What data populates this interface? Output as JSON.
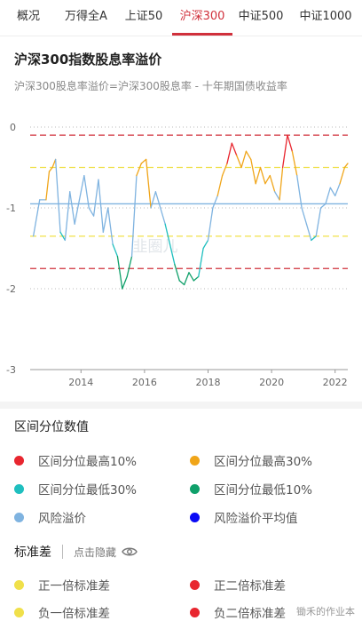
{
  "tabs": [
    {
      "label": "概况"
    },
    {
      "label": "万得全A"
    },
    {
      "label": "上证50"
    },
    {
      "label": "沪深300",
      "active": true
    },
    {
      "label": "中证500"
    },
    {
      "label": "中证1000"
    }
  ],
  "header": {
    "title": "沪深300指数股息率溢价",
    "subtitle": "沪深300股息率溢价=沪深300股息率 - 十年期国债收益率"
  },
  "watermark_chart": "韭圈儿",
  "chart_data": {
    "type": "line",
    "title": "",
    "xlabel": "",
    "ylabel": "",
    "ylim": [
      -3,
      0
    ],
    "xlim": [
      2012.4,
      2022.4
    ],
    "y_ticks": [
      "0",
      "-1",
      "-2",
      "-3"
    ],
    "x_ticks": [
      "2014",
      "2016",
      "2018",
      "2020",
      "2022"
    ],
    "reference_lines": [
      {
        "name": "正二倍标准差",
        "value": -0.1,
        "color": "#d0303b",
        "style": "dashed"
      },
      {
        "name": "正一倍标准差",
        "value": -0.5,
        "color": "#f0e04a",
        "style": "dashed"
      },
      {
        "name": "风险溢价平均值",
        "value": -0.95,
        "color": "#7fb3e0",
        "style": "solid"
      },
      {
        "name": "负一倍标准差",
        "value": -1.35,
        "color": "#f0e04a",
        "style": "dashed"
      },
      {
        "name": "负二倍标准差",
        "value": -1.75,
        "color": "#d0303b",
        "style": "dashed"
      }
    ],
    "series": [
      {
        "name": "风险溢价",
        "x": [
          2012.5,
          2012.7,
          2012.9,
          2013.0,
          2013.1,
          2013.2,
          2013.35,
          2013.5,
          2013.65,
          2013.8,
          2013.95,
          2014.1,
          2014.25,
          2014.4,
          2014.55,
          2014.7,
          2014.85,
          2015.0,
          2015.15,
          2015.3,
          2015.45,
          2015.6,
          2015.75,
          2015.9,
          2016.05,
          2016.2,
          2016.35,
          2016.5,
          2016.65,
          2016.8,
          2016.95,
          2017.1,
          2017.25,
          2017.4,
          2017.55,
          2017.7,
          2017.85,
          2018.0,
          2018.15,
          2018.3,
          2018.45,
          2018.6,
          2018.75,
          2018.9,
          2019.05,
          2019.2,
          2019.35,
          2019.5,
          2019.65,
          2019.8,
          2019.95,
          2020.1,
          2020.25,
          2020.35,
          2020.5,
          2020.65,
          2020.8,
          2020.95,
          2021.1,
          2021.25,
          2021.4,
          2021.55,
          2021.7,
          2021.85,
          2022.0,
          2022.15,
          2022.3,
          2022.4
        ],
        "y": [
          -1.35,
          -0.9,
          -0.9,
          -0.55,
          -0.5,
          -0.4,
          -1.3,
          -1.4,
          -0.8,
          -1.2,
          -0.9,
          -0.6,
          -1.0,
          -1.1,
          -0.65,
          -1.3,
          -1.0,
          -1.45,
          -1.6,
          -2.0,
          -1.85,
          -1.6,
          -0.6,
          -0.45,
          -0.4,
          -1.0,
          -0.8,
          -1.0,
          -1.2,
          -1.45,
          -1.7,
          -1.9,
          -1.95,
          -1.8,
          -1.9,
          -1.85,
          -1.5,
          -1.4,
          -1.0,
          -0.85,
          -0.6,
          -0.45,
          -0.2,
          -0.35,
          -0.5,
          -0.3,
          -0.4,
          -0.7,
          -0.5,
          -0.7,
          -0.6,
          -0.8,
          -0.9,
          -0.5,
          -0.1,
          -0.3,
          -0.6,
          -1.0,
          -1.2,
          -1.4,
          -1.35,
          -1.0,
          -0.95,
          -0.75,
          -0.85,
          -0.7,
          -0.5,
          -0.45
        ]
      }
    ]
  },
  "legend_section": {
    "title": "区间分位数值",
    "items": [
      {
        "label": "区间分位最高10%",
        "color": "#e8262f"
      },
      {
        "label": "区间分位最高30%",
        "color": "#f0a519"
      },
      {
        "label": "区间分位最低30%",
        "color": "#1fbfbf"
      },
      {
        "label": "区间分位最低10%",
        "color": "#0fa06a"
      },
      {
        "label": "风险溢价",
        "color": "#7fb3e0"
      },
      {
        "label": "风险溢价平均值",
        "color": "#0a0af5"
      }
    ]
  },
  "std_section": {
    "title": "标准差",
    "hide_label": "点击隐藏",
    "items": [
      {
        "label": "正一倍标准差",
        "color": "#f0e04a"
      },
      {
        "label": "正二倍标准差",
        "color": "#e8262f"
      },
      {
        "label": "负一倍标准差",
        "color": "#f0e04a"
      },
      {
        "label": "负二倍标准差",
        "color": "#e8262f"
      }
    ]
  },
  "footer_watermark": "锄禾的作业本"
}
